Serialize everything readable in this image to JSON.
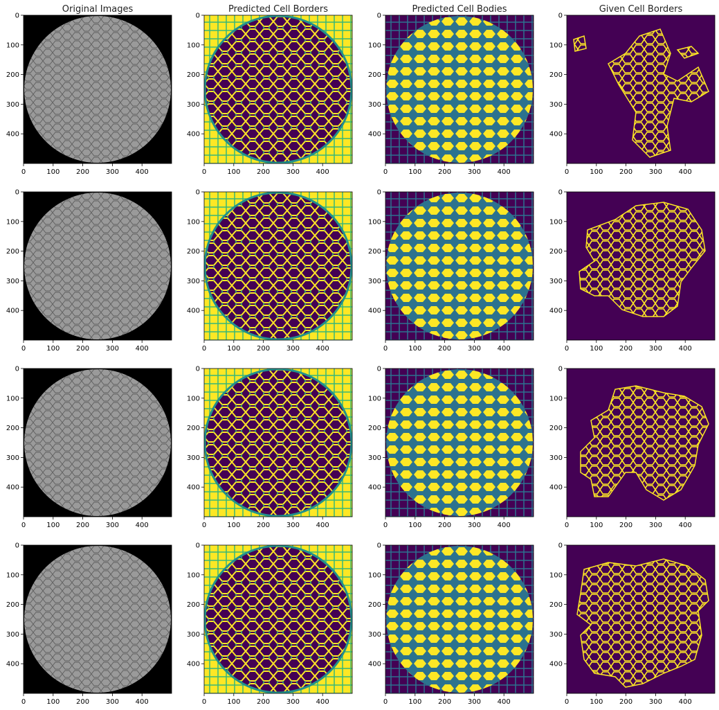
{
  "figure": {
    "column_titles": [
      "Original Images",
      "Predicted Cell Borders",
      "Predicted Cell Bodies",
      "Given Cell Borders"
    ]
  },
  "chart_data": {
    "type": "image-grid",
    "rows": 4,
    "columns": 4,
    "x_ticks": [
      0,
      100,
      200,
      300,
      400
    ],
    "y_ticks": [
      0,
      100,
      200,
      300,
      400
    ],
    "xlim": [
      0,
      500
    ],
    "ylim": [
      500,
      0
    ],
    "grid": false,
    "colors": {
      "original_background": "#000000",
      "original_disc": "#8a8a8a",
      "viridis_low": "#440154",
      "viridis_mid": "#21918c",
      "viridis_green": "#35b779",
      "viridis_high": "#fde725"
    },
    "panels": [
      {
        "column": "Original Images",
        "colormap": "gray",
        "content": "circular micrograph of cells on black background"
      },
      {
        "column": "Predicted Cell Borders",
        "colormap": "viridis",
        "content": "yellow cell border network inside disc, yellow outside"
      },
      {
        "column": "Predicted Cell Bodies",
        "colormap": "viridis",
        "content": "yellow cell bodies inside disc, dark outside"
      },
      {
        "column": "Given Cell Borders",
        "colormap": "viridis",
        "content": "yellow annotated cell outlines on dark purple background"
      }
    ]
  }
}
